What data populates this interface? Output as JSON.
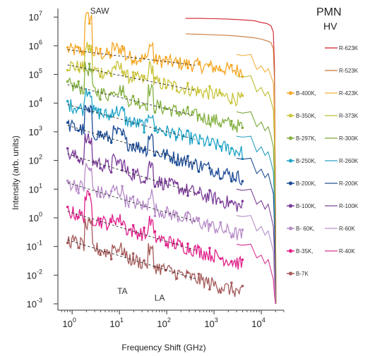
{
  "chart_data": {
    "type": "line",
    "title": "PMN",
    "subtitle": "HV",
    "xlabel": "Frequency Shift (GHz)",
    "ylabel": "Intensity (arb. units)",
    "xscale": "log",
    "yscale": "log",
    "xlim": [
      0.5,
      30000
    ],
    "ylim": [
      0.0006,
      20000000
    ],
    "xticks": [
      {
        "value": 1,
        "base": "10",
        "exp": "0"
      },
      {
        "value": 10,
        "base": "10",
        "exp": "1"
      },
      {
        "value": 100,
        "base": "10",
        "exp": "2"
      },
      {
        "value": 1000,
        "base": "10",
        "exp": "3"
      },
      {
        "value": 10000,
        "base": "10",
        "exp": "4"
      }
    ],
    "yticks": [
      {
        "value": 0.001,
        "base": "10",
        "exp": "-3"
      },
      {
        "value": 0.01,
        "base": "10",
        "exp": "-2"
      },
      {
        "value": 0.1,
        "base": "10",
        "exp": "-1"
      },
      {
        "value": 1,
        "base": "10",
        "exp": "0"
      },
      {
        "value": 10,
        "base": "10",
        "exp": "1"
      },
      {
        "value": 100,
        "base": "10",
        "exp": "2"
      },
      {
        "value": 1000,
        "base": "10",
        "exp": "3"
      },
      {
        "value": 10000,
        "base": "10",
        "exp": "4"
      },
      {
        "value": 100000,
        "base": "10",
        "exp": "5"
      },
      {
        "value": 1000000,
        "base": "10",
        "exp": "6"
      },
      {
        "value": 10000000,
        "base": "10",
        "exp": "7"
      }
    ],
    "legend_position": "right",
    "annotations": [
      {
        "text": "SAW",
        "x": 2.4,
        "y": 13000000
      },
      {
        "text": "TA",
        "x": 9,
        "y": 0.0022
      },
      {
        "text": "LA",
        "x": 55,
        "y": 0.0013
      }
    ],
    "series": [
      {
        "name": "R-623K",
        "color": "#d41e2a",
        "kind": "raman",
        "level": 9000000,
        "x": [
          250,
          500,
          1000,
          2000,
          4000,
          7000,
          10000,
          13000,
          16000,
          18000,
          19000,
          20000,
          20500
        ],
        "y": [
          9000000,
          9000000,
          8800000,
          8500000,
          8000000,
          7500000,
          6500000,
          6000000,
          5000000,
          3000000,
          200000,
          1,
          0.001
        ]
      },
      {
        "name": "R-523K",
        "color": "#c87837",
        "kind": "raman",
        "level": 2500000,
        "x": [
          250,
          500,
          1000,
          2000,
          4000,
          7000,
          10000,
          13000,
          16000,
          18000,
          19000,
          20000,
          20500
        ],
        "y": [
          2600000,
          2500000,
          2400000,
          2300000,
          2100000,
          1900000,
          1700000,
          1500000,
          1300000,
          800000,
          60000,
          1,
          0.001
        ]
      },
      {
        "name": "B-400K",
        "color": "#f5a623",
        "kind": "brillouin",
        "level": 700000,
        "slope": 0.2
      },
      {
        "name": "R-423K",
        "color": "#f0b040",
        "kind": "raman",
        "level": 500000,
        "x": [
          3000,
          4000,
          6000,
          8000,
          10000,
          12000,
          14000,
          16000,
          18000,
          19000,
          20000
        ],
        "y": [
          500000,
          450000,
          500000,
          150000,
          200000,
          120000,
          160000,
          90000,
          50000,
          3000,
          0.001
        ]
      },
      {
        "name": "B-350K",
        "color": "#c9c43a",
        "kind": "brillouin",
        "level": 200000,
        "slope": 0.33
      },
      {
        "name": "R-373K",
        "color": "#bcbc30",
        "kind": "raman",
        "level": 80000,
        "x": [
          3000,
          4000,
          6000,
          8000,
          10000,
          12000,
          14000,
          16000,
          18000,
          19000,
          20000
        ],
        "y": [
          90000,
          80000,
          90000,
          25000,
          35000,
          18000,
          25000,
          12000,
          6000,
          400,
          0.001
        ]
      },
      {
        "name": "B-297K",
        "color": "#84b041",
        "kind": "brillouin",
        "level": 40000,
        "slope": 0.4
      },
      {
        "name": "R-300K",
        "color": "#7aa83a",
        "kind": "raman",
        "level": 5000,
        "x": [
          3000,
          4000,
          6000,
          8000,
          10000,
          12000,
          14000,
          16000,
          18000,
          19000,
          20000
        ],
        "y": [
          5000,
          4500,
          5000,
          1500,
          2200,
          1100,
          1500,
          700,
          300,
          20,
          0.001
        ]
      },
      {
        "name": "B-250K",
        "color": "#1fa3c6",
        "kind": "brillouin",
        "level": 8000,
        "slope": 0.45
      },
      {
        "name": "R-260K",
        "color": "#28a0c0",
        "kind": "raman",
        "level": 800,
        "x": [
          3000,
          4000,
          6000,
          8000,
          10000,
          12000,
          14000,
          16000,
          18000,
          19000,
          20000
        ],
        "y": [
          700,
          650,
          700,
          200,
          300,
          150,
          200,
          90,
          40,
          3,
          0.001
        ]
      },
      {
        "name": "B-200K",
        "color": "#1b4b96",
        "kind": "brillouin",
        "level": 1500,
        "slope": 0.5
      },
      {
        "name": "R-200K",
        "color": "#23508f",
        "kind": "raman",
        "level": 100,
        "x": [
          3000,
          4000,
          6000,
          8000,
          10000,
          12000,
          14000,
          16000,
          18000,
          19000,
          20000
        ],
        "y": [
          120,
          110,
          120,
          35,
          50,
          25,
          35,
          15,
          7,
          0.5,
          0.001
        ]
      },
      {
        "name": "B-100K",
        "color": "#7a3a96",
        "kind": "brillouin",
        "level": 150,
        "slope": 0.5
      },
      {
        "name": "R-100K",
        "color": "#7d4396",
        "kind": "raman",
        "level": 8,
        "x": [
          3000,
          4000,
          6000,
          8000,
          10000,
          12000,
          14000,
          16000,
          18000,
          19000,
          20000
        ],
        "y": [
          10,
          9,
          10,
          3,
          4,
          2,
          3,
          1.2,
          0.5,
          0.05,
          0.001
        ]
      },
      {
        "name": "B-60K",
        "color": "#b78cc8",
        "kind": "brillouin",
        "level": 15,
        "slope": 0.5
      },
      {
        "name": "R-60K",
        "color": "#b690c8",
        "kind": "raman",
        "level": 1,
        "x": [
          3000,
          4000,
          6000,
          8000,
          10000,
          12000,
          14000,
          16000,
          18000,
          19000,
          20000
        ],
        "y": [
          1.2,
          1.1,
          1.2,
          0.35,
          0.5,
          0.25,
          0.35,
          0.15,
          0.07,
          0.006,
          0.001
        ]
      },
      {
        "name": "B-35K",
        "color": "#e0218a",
        "kind": "brillouin",
        "level": 1.5,
        "slope": 0.5
      },
      {
        "name": "R-40K",
        "color": "#d9338f",
        "kind": "raman",
        "level": 0.1,
        "x": [
          3000,
          4000,
          6000,
          8000,
          10000,
          12000,
          14000,
          16000,
          18000,
          19000,
          20000
        ],
        "y": [
          0.12,
          0.11,
          0.12,
          0.04,
          0.05,
          0.025,
          0.035,
          0.015,
          0.007,
          0.002,
          0.001
        ]
      },
      {
        "name": "B-7K",
        "color": "#a55a5a",
        "kind": "brillouin",
        "level": 0.15,
        "slope": 0.5
      }
    ],
    "legend": {
      "rows": [
        {
          "raman": "R-623K"
        },
        {
          "raman": "R-523K"
        },
        {
          "brillouin": "B-400K,",
          "raman": "R-423K"
        },
        {
          "brillouin": "B-350K,",
          "raman": "R-373K"
        },
        {
          "brillouin": "B-297K,",
          "raman": "R-300K"
        },
        {
          "brillouin": "B-250K,",
          "raman": "R-260K"
        },
        {
          "brillouin": "B-200K,",
          "raman": "R-200K"
        },
        {
          "brillouin": "B-100K,",
          "raman": "R-100K"
        },
        {
          "brillouin": "B- 60K,",
          "raman": "R-60K"
        },
        {
          "brillouin": "B-35K,",
          "raman": "R-40K"
        },
        {
          "brillouin": "B-7K"
        }
      ]
    }
  }
}
